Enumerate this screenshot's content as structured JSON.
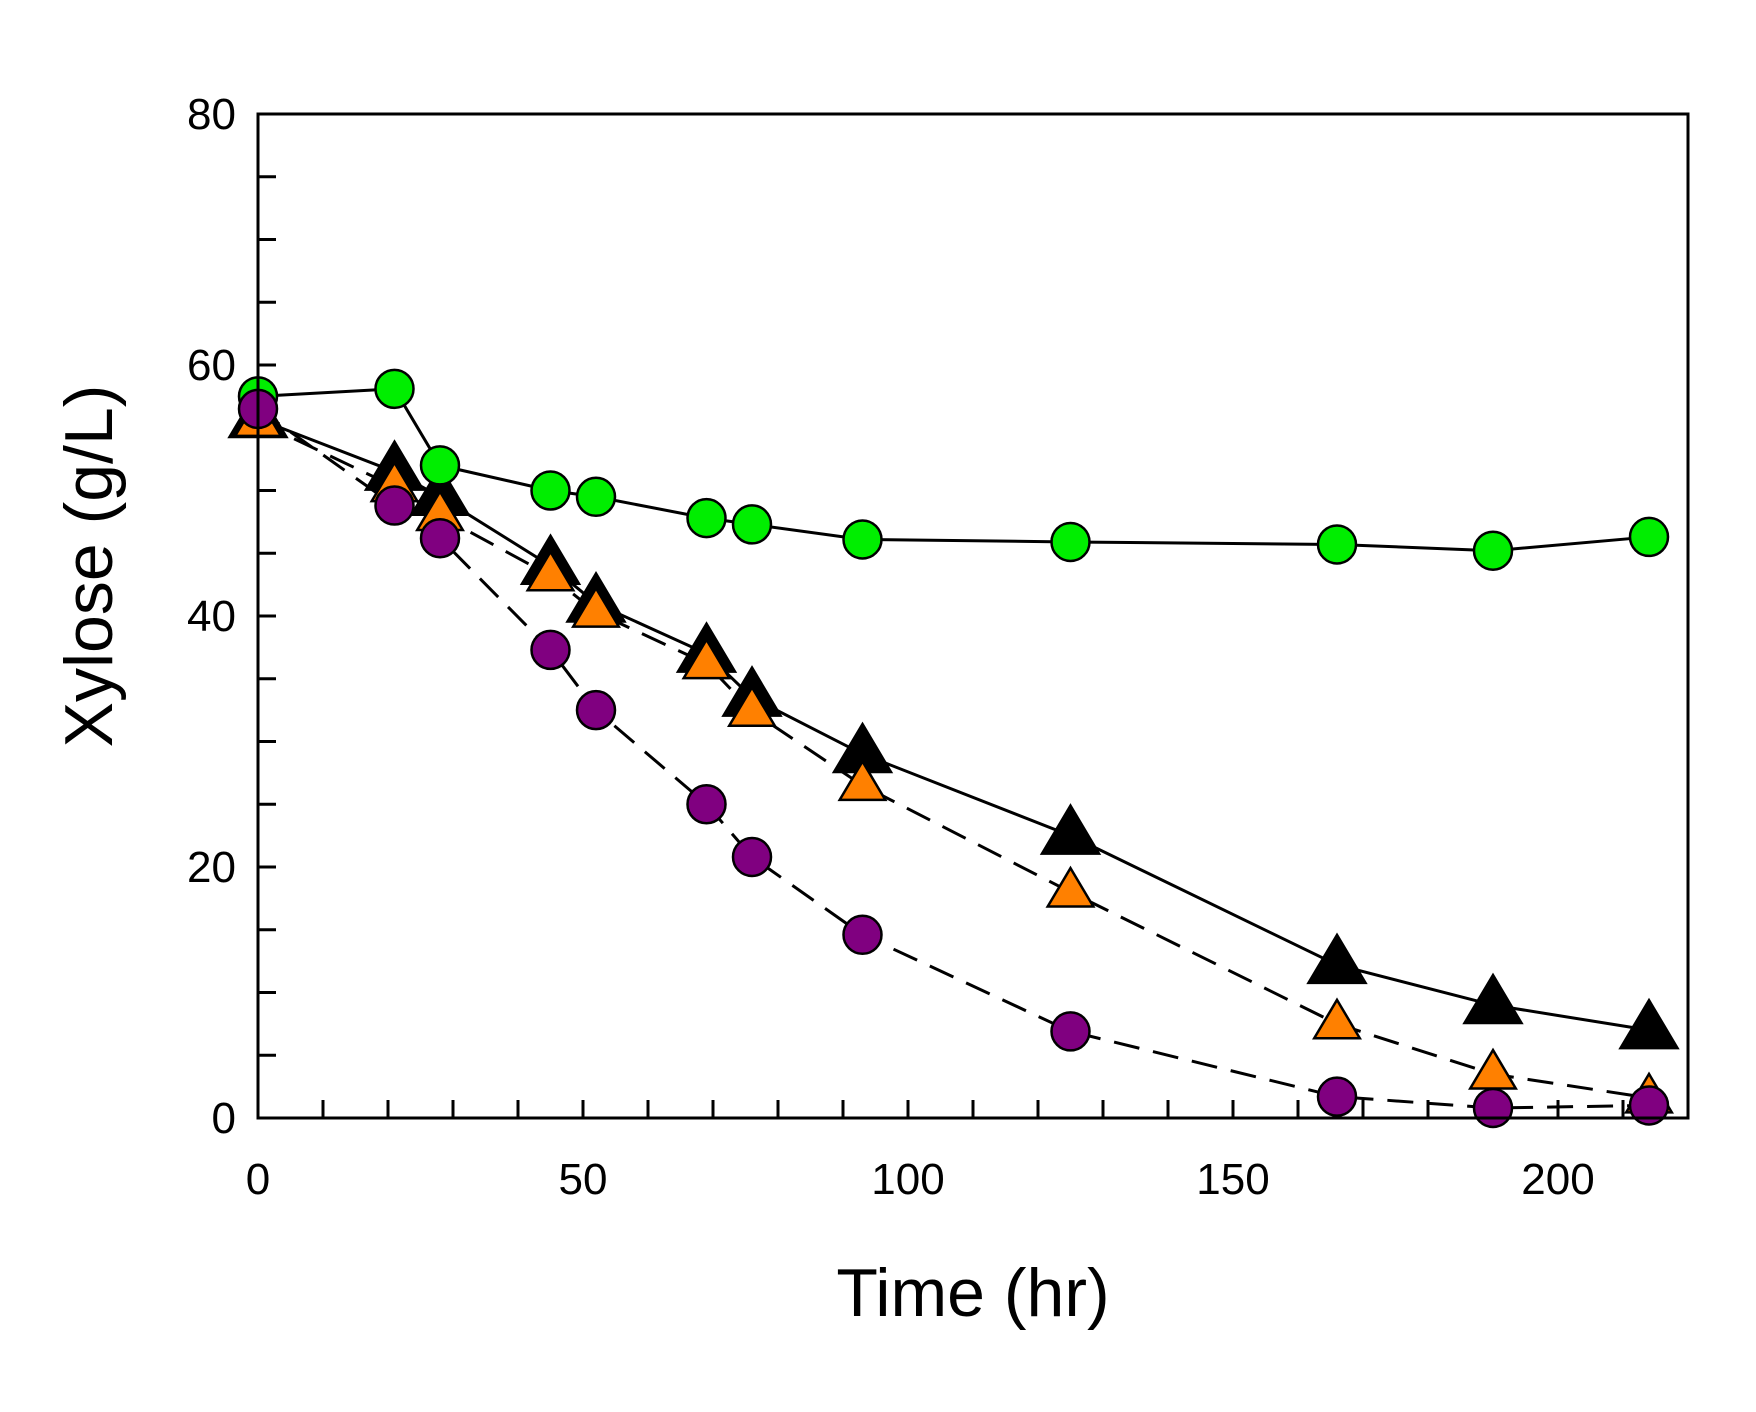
{
  "chart_data": {
    "type": "line",
    "title": "",
    "xlabel": "Time (hr)",
    "ylabel": "Xylose (g/L)",
    "xlim": [
      0,
      220
    ],
    "ylim": [
      0,
      80
    ],
    "xticks": [
      0,
      50,
      100,
      150,
      200
    ],
    "yticks": [
      0,
      20,
      40,
      60,
      80
    ],
    "x_minor_step": 10,
    "y_minor_step": 5,
    "grid": false,
    "series": [
      {
        "name": "green circles",
        "marker": "circle",
        "color": "#00ee00",
        "line_style": "solid",
        "x": [
          0,
          21,
          28,
          45,
          52,
          69,
          76,
          93,
          125,
          166,
          190,
          214
        ],
        "y": [
          57.5,
          58.1,
          52,
          50,
          49.5,
          47.8,
          47.3,
          46.1,
          45.9,
          45.7,
          45.2,
          46.3
        ]
      },
      {
        "name": "black triangles",
        "marker": "triangle",
        "color": "#000000",
        "line_style": "solid",
        "x": [
          0,
          21,
          28,
          45,
          52,
          69,
          76,
          93,
          125,
          166,
          190,
          214
        ],
        "y": [
          55.7,
          51.5,
          49.5,
          44,
          41,
          37,
          33.5,
          29,
          22.5,
          12.2,
          9,
          7
        ]
      },
      {
        "name": "orange triangles",
        "marker": "triangle",
        "color": "#ff8000",
        "line_style": "dashed",
        "x": [
          0,
          21,
          28,
          45,
          52,
          69,
          76,
          93,
          125,
          166,
          190,
          214
        ],
        "y": [
          55.5,
          50.3,
          48,
          43.2,
          40.3,
          36.2,
          32.4,
          26.5,
          18,
          7.5,
          3.5,
          1.6
        ]
      },
      {
        "name": "purple circles",
        "marker": "circle",
        "color": "#800080",
        "line_style": "dashed",
        "x": [
          0,
          21,
          28,
          45,
          52,
          69,
          76,
          93,
          125,
          166,
          190,
          214
        ],
        "y": [
          56.5,
          48.8,
          46.2,
          37.3,
          32.5,
          25,
          20.8,
          14.6,
          6.9,
          1.7,
          0.8,
          1
        ]
      }
    ]
  }
}
